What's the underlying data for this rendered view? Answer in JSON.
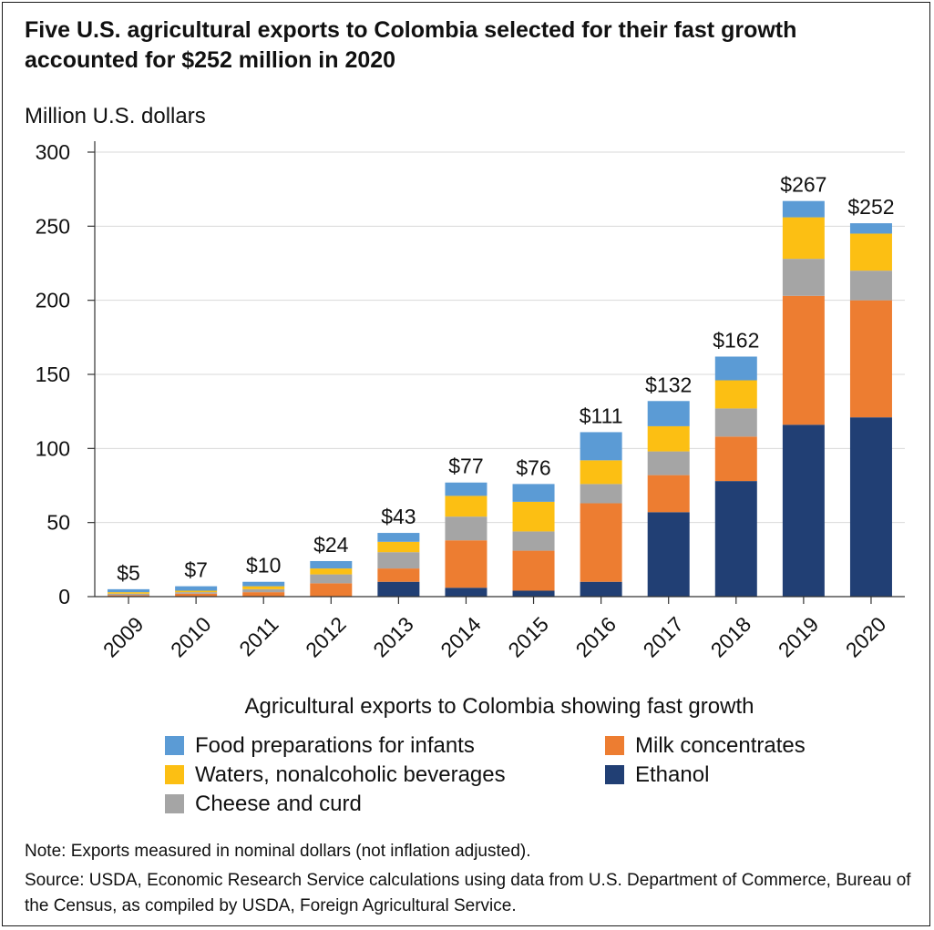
{
  "title": "Five U.S. agricultural exports to Colombia selected for their fast growth accounted for $252 million in 2020",
  "chart_data": {
    "type": "bar",
    "stacked": true,
    "ylabel": "Million U.S. dollars",
    "xlabel": "Agricultural exports to Colombia showing fast growth",
    "ylim": [
      0,
      300
    ],
    "yticks": [
      0,
      50,
      100,
      150,
      200,
      250,
      300
    ],
    "grid": "horizontal",
    "legend_position": "bottom",
    "categories": [
      "2009",
      "2010",
      "2011",
      "2012",
      "2013",
      "2014",
      "2015",
      "2016",
      "2017",
      "2018",
      "2019",
      "2020"
    ],
    "series": [
      {
        "name": "Ethanol",
        "color": "#213f74",
        "values": [
          0,
          0,
          0,
          0,
          10,
          6,
          4,
          10,
          57,
          78,
          116,
          121
        ]
      },
      {
        "name": "Milk concentrates",
        "color": "#ed7d31",
        "values": [
          1,
          2,
          3,
          9,
          9,
          32,
          27,
          53,
          25,
          30,
          87,
          79
        ]
      },
      {
        "name": "Cheese and curd",
        "color": "#a5a5a5",
        "values": [
          1,
          1,
          2,
          6,
          11,
          16,
          13,
          13,
          16,
          19,
          25,
          20
        ]
      },
      {
        "name": "Waters, nonalcoholic beverages",
        "color": "#fcbf13",
        "values": [
          1,
          1,
          2,
          4,
          7,
          14,
          20,
          16,
          17,
          19,
          28,
          25
        ]
      },
      {
        "name": "Food preparations for infants",
        "color": "#5b9bd5",
        "values": [
          2,
          3,
          3,
          5,
          6,
          9,
          12,
          19,
          17,
          16,
          11,
          7
        ]
      }
    ],
    "totals": [
      5,
      7,
      10,
      24,
      43,
      77,
      76,
      111,
      132,
      162,
      267,
      252
    ],
    "total_labels": [
      "$5",
      "$7",
      "$10",
      "$24",
      "$43",
      "$77",
      "$76",
      "$111",
      "$132",
      "$162",
      "$267",
      "$252"
    ]
  },
  "legend": [
    {
      "label": "Food preparations for infants",
      "color": "#5b9bd5"
    },
    {
      "label": "Milk concentrates",
      "color": "#ed7d31"
    },
    {
      "label": "Waters, nonalcoholic beverages",
      "color": "#fcbf13"
    },
    {
      "label": "Ethanol",
      "color": "#213f74"
    },
    {
      "label": "Cheese and curd",
      "color": "#a5a5a5"
    }
  ],
  "note": "Note: Exports measured in nominal dollars (not inflation adjusted).",
  "source": "Source: USDA, Economic Research Service calculations using data from U.S. Department of Commerce, Bureau of the Census, as compiled by USDA, Foreign Agricultural Service."
}
